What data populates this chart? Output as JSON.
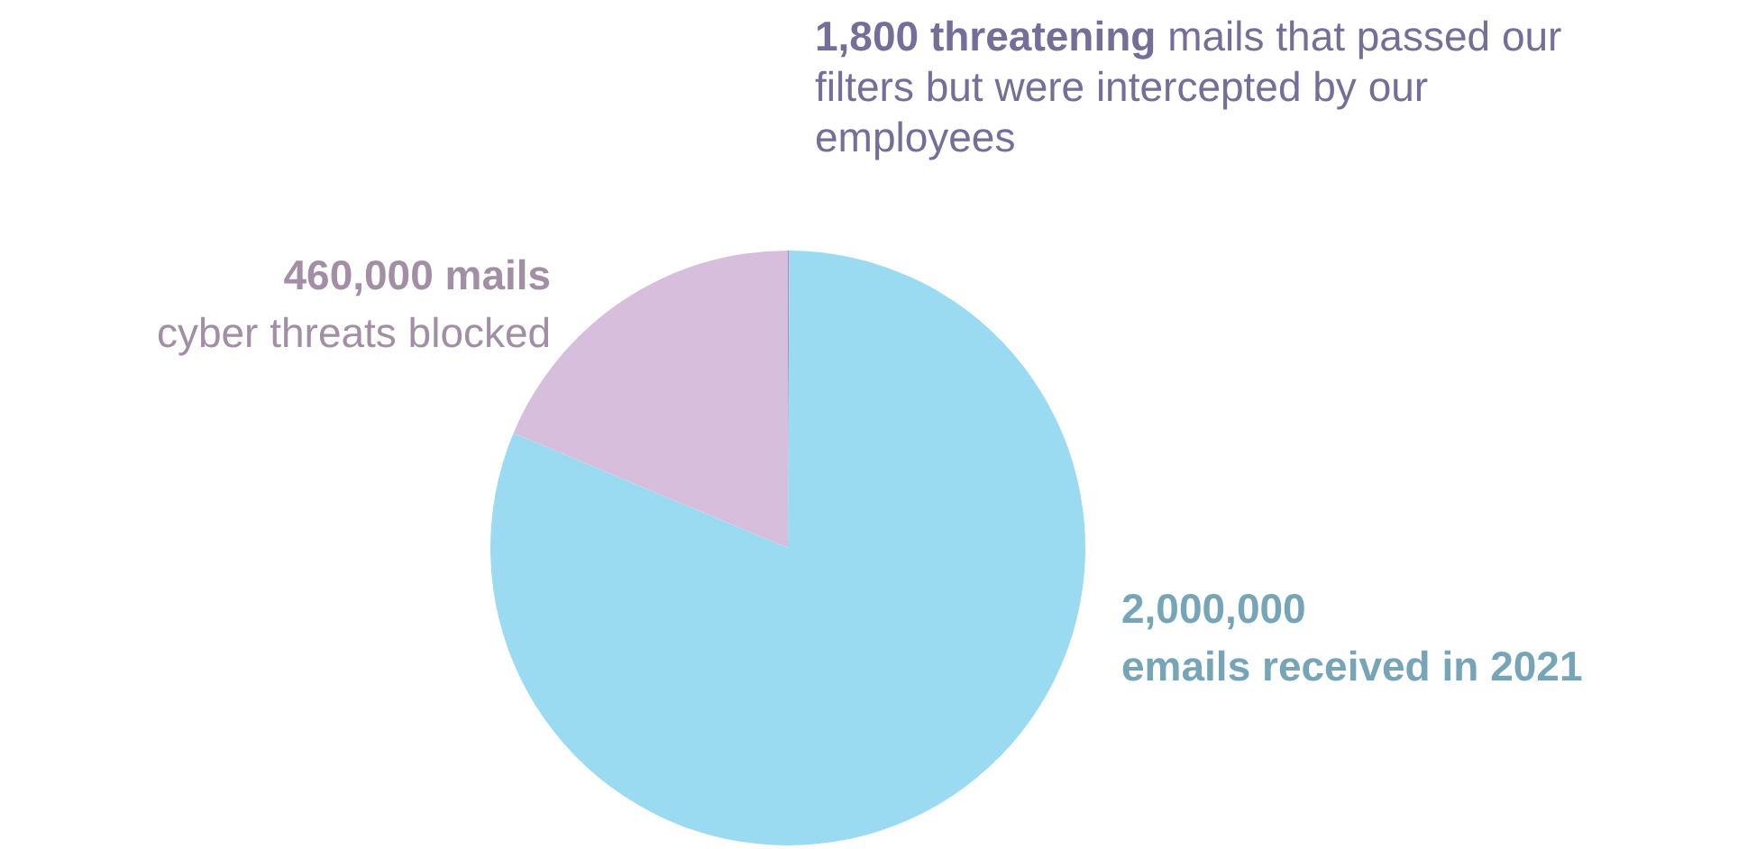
{
  "chart_data": {
    "type": "pie",
    "categories": [
      "mails that passed our filters but were intercepted by our employees",
      "emails received in 2021",
      "cyber threats blocked"
    ],
    "values": [
      1800,
      2000000,
      460000
    ],
    "value_labels": [
      "1,800 threatening",
      "2,000,000",
      "460,000 mails"
    ],
    "colors": [
      "#9b92cc",
      "#9bdbf2",
      "#d8bedd"
    ]
  }
}
